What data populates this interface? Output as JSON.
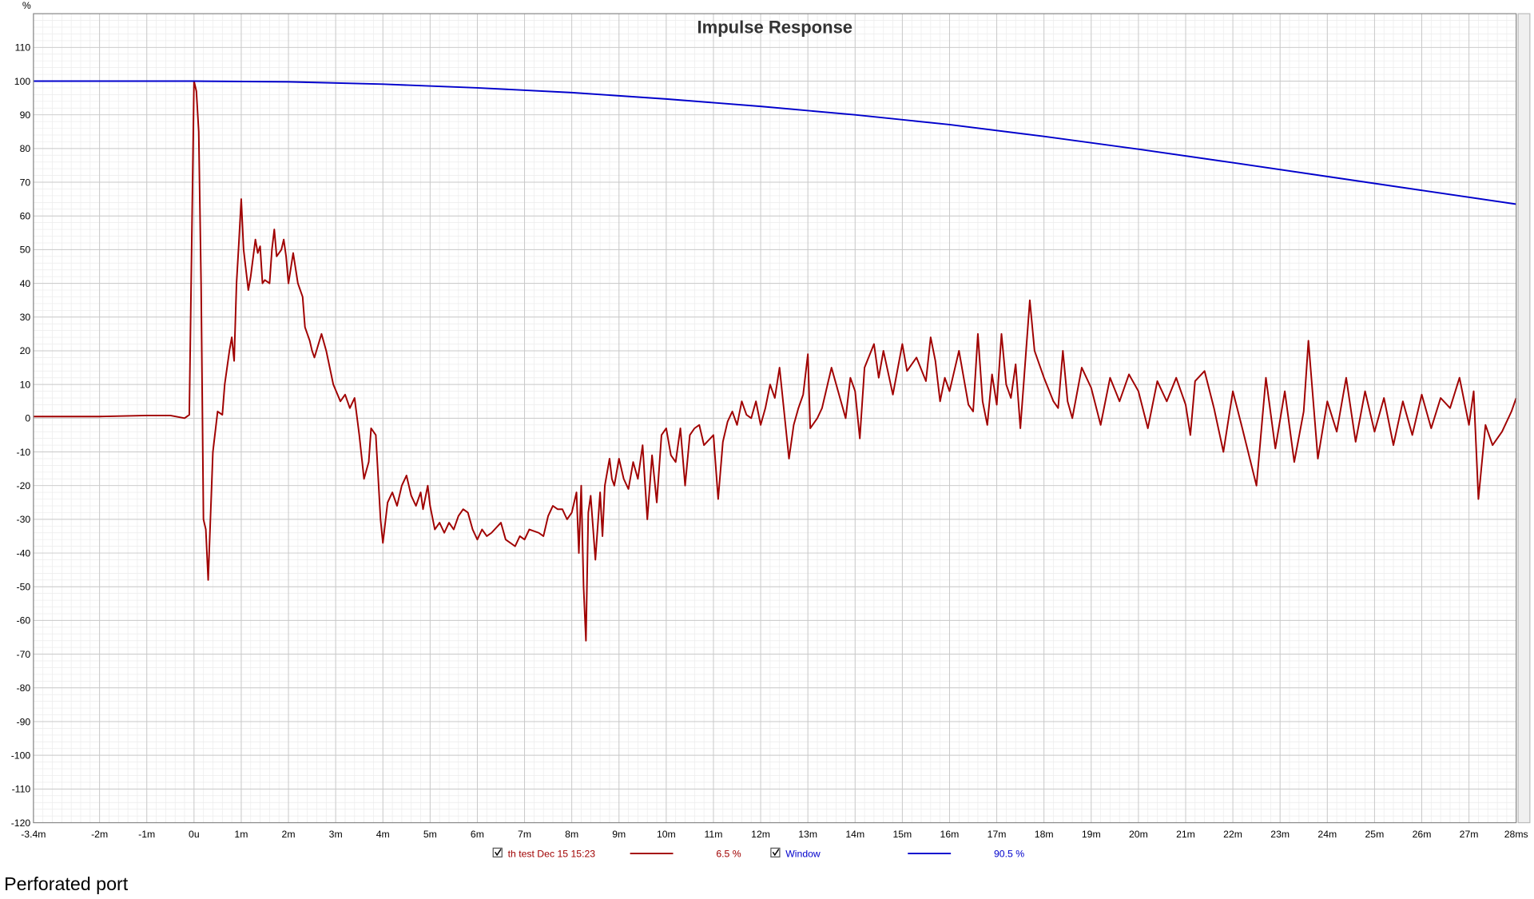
{
  "chart_data": {
    "type": "line",
    "title": "Impulse Response",
    "y_unit": "%",
    "caption": "Perforated port",
    "xlim": [
      -3.4,
      28
    ],
    "ylim": [
      -120,
      120
    ],
    "grid": true,
    "xticks": [
      {
        "value": -3.4,
        "label": "-3.4m"
      },
      {
        "value": -2,
        "label": "-2m"
      },
      {
        "value": -1,
        "label": "-1m"
      },
      {
        "value": 0,
        "label": "0u"
      },
      {
        "value": 1,
        "label": "1m"
      },
      {
        "value": 2,
        "label": "2m"
      },
      {
        "value": 3,
        "label": "3m"
      },
      {
        "value": 4,
        "label": "4m"
      },
      {
        "value": 5,
        "label": "5m"
      },
      {
        "value": 6,
        "label": "6m"
      },
      {
        "value": 7,
        "label": "7m"
      },
      {
        "value": 8,
        "label": "8m"
      },
      {
        "value": 9,
        "label": "9m"
      },
      {
        "value": 10,
        "label": "10m"
      },
      {
        "value": 11,
        "label": "11m"
      },
      {
        "value": 12,
        "label": "12m"
      },
      {
        "value": 13,
        "label": "13m"
      },
      {
        "value": 14,
        "label": "14m"
      },
      {
        "value": 15,
        "label": "15m"
      },
      {
        "value": 16,
        "label": "16m"
      },
      {
        "value": 17,
        "label": "17m"
      },
      {
        "value": 18,
        "label": "18m"
      },
      {
        "value": 19,
        "label": "19m"
      },
      {
        "value": 20,
        "label": "20m"
      },
      {
        "value": 21,
        "label": "21m"
      },
      {
        "value": 22,
        "label": "22m"
      },
      {
        "value": 23,
        "label": "23m"
      },
      {
        "value": 24,
        "label": "24m"
      },
      {
        "value": 25,
        "label": "25m"
      },
      {
        "value": 26,
        "label": "26m"
      },
      {
        "value": 27,
        "label": "27m"
      },
      {
        "value": 28,
        "label": "28ms"
      }
    ],
    "yticks": [
      110,
      100,
      90,
      80,
      70,
      60,
      50,
      40,
      30,
      20,
      10,
      0,
      -10,
      -20,
      -30,
      -40,
      -50,
      -60,
      -70,
      -80,
      -90,
      -100,
      -110,
      -120
    ],
    "series": [
      {
        "name": "th test Dec 15 15:23",
        "color": "#a00000",
        "value_label": "6.5 %",
        "x": [
          -3.4,
          -2,
          -1,
          -0.5,
          -0.2,
          -0.1,
          0,
          0.05,
          0.1,
          0.15,
          0.2,
          0.25,
          0.3,
          0.4,
          0.5,
          0.6,
          0.65,
          0.75,
          0.8,
          0.85,
          0.9,
          0.95,
          1.0,
          1.05,
          1.15,
          1.2,
          1.3,
          1.35,
          1.4,
          1.45,
          1.5,
          1.6,
          1.65,
          1.7,
          1.75,
          1.85,
          1.9,
          1.95,
          2.0,
          2.1,
          2.2,
          2.3,
          2.35,
          2.45,
          2.5,
          2.55,
          2.7,
          2.8,
          2.95,
          3.1,
          3.2,
          3.3,
          3.4,
          3.5,
          3.6,
          3.7,
          3.75,
          3.85,
          3.95,
          4.0,
          4.1,
          4.2,
          4.3,
          4.4,
          4.5,
          4.6,
          4.7,
          4.8,
          4.85,
          4.95,
          5.0,
          5.1,
          5.2,
          5.3,
          5.4,
          5.5,
          5.6,
          5.7,
          5.8,
          5.9,
          6.0,
          6.1,
          6.2,
          6.3,
          6.5,
          6.6,
          6.8,
          6.9,
          7.0,
          7.1,
          7.3,
          7.4,
          7.5,
          7.6,
          7.7,
          7.8,
          7.9,
          8.0,
          8.1,
          8.15,
          8.2,
          8.25,
          8.3,
          8.35,
          8.4,
          8.5,
          8.6,
          8.65,
          8.7,
          8.8,
          8.85,
          8.9,
          9.0,
          9.1,
          9.2,
          9.3,
          9.4,
          9.5,
          9.6,
          9.7,
          9.8,
          9.9,
          10.0,
          10.1,
          10.2,
          10.3,
          10.4,
          10.5,
          10.6,
          10.7,
          10.8,
          11.0,
          11.1,
          11.2,
          11.3,
          11.4,
          11.5,
          11.6,
          11.7,
          11.8,
          11.9,
          12.0,
          12.1,
          12.2,
          12.3,
          12.4,
          12.6,
          12.7,
          12.8,
          12.9,
          13.0,
          13.05,
          13.2,
          13.3,
          13.5,
          13.7,
          13.8,
          13.9,
          14.0,
          14.1,
          14.2,
          14.4,
          14.5,
          14.6,
          14.8,
          15.0,
          15.1,
          15.3,
          15.5,
          15.6,
          15.7,
          15.8,
          15.9,
          16.0,
          16.2,
          16.4,
          16.5,
          16.6,
          16.7,
          16.8,
          16.9,
          17.0,
          17.1,
          17.2,
          17.3,
          17.4,
          17.5,
          17.7,
          17.8,
          18.0,
          18.2,
          18.3,
          18.4,
          18.5,
          18.6,
          18.8,
          19.0,
          19.2,
          19.4,
          19.6,
          19.8,
          20.0,
          20.2,
          20.4,
          20.6,
          20.8,
          21.0,
          21.1,
          21.2,
          21.4,
          21.6,
          21.8,
          22.0,
          22.2,
          22.5,
          22.7,
          22.9,
          23.1,
          23.3,
          23.5,
          23.6,
          23.8,
          24.0,
          24.2,
          24.4,
          24.6,
          24.8,
          25.0,
          25.2,
          25.4,
          25.6,
          25.8,
          26.0,
          26.2,
          26.4,
          26.6,
          26.8,
          27.0,
          27.1,
          27.2,
          27.35,
          27.5,
          27.7,
          27.9,
          28.0
        ],
        "values": [
          0.5,
          0.5,
          0.8,
          0.8,
          0,
          1,
          100,
          97,
          85,
          40,
          -30,
          -33,
          -48,
          -10,
          2,
          1,
          10,
          20,
          24,
          17,
          40,
          52,
          65,
          50,
          38,
          42,
          53,
          49,
          51,
          40,
          41,
          40,
          50,
          56,
          48,
          50,
          53,
          48,
          40,
          49,
          40,
          36,
          27,
          23,
          20,
          18,
          25,
          20,
          10,
          5,
          7,
          3,
          6,
          -5,
          -18,
          -13,
          -3,
          -5,
          -30,
          -37,
          -25,
          -22,
          -26,
          -20,
          -17,
          -23,
          -26,
          -22,
          -27,
          -20,
          -26,
          -33,
          -31,
          -34,
          -31,
          -33,
          -29,
          -27,
          -28,
          -33,
          -36,
          -33,
          -35,
          -34,
          -31,
          -36,
          -38,
          -35,
          -36,
          -33,
          -34,
          -35,
          -29,
          -26,
          -27,
          -27,
          -30,
          -28,
          -22,
          -40,
          -20,
          -50,
          -66,
          -28,
          -23,
          -42,
          -22,
          -35,
          -20,
          -12,
          -18,
          -20,
          -12,
          -18,
          -21,
          -13,
          -18,
          -8,
          -30,
          -11,
          -25,
          -5,
          -3,
          -11,
          -13,
          -3,
          -20,
          -5,
          -3,
          -2,
          -8,
          -5,
          -24,
          -7,
          -1,
          2,
          -2,
          5,
          1,
          0,
          5,
          -2,
          3,
          10,
          6,
          15,
          -12,
          -2,
          3,
          7,
          19,
          -3,
          0,
          3,
          15,
          5,
          0,
          12,
          8,
          -6,
          15,
          22,
          12,
          20,
          7,
          22,
          14,
          18,
          11,
          24,
          17,
          5,
          12,
          8,
          20,
          4,
          2,
          25,
          5,
          -2,
          13,
          4,
          25,
          10,
          6,
          16,
          -3,
          35,
          20,
          12,
          5,
          3,
          20,
          5,
          0,
          15,
          9,
          -2,
          12,
          5,
          13,
          8,
          -3,
          11,
          5,
          12,
          4,
          -5,
          11,
          14,
          3,
          -10,
          8,
          -3,
          -20,
          12,
          -9,
          8,
          -13,
          2,
          23,
          -12,
          5,
          -4,
          12,
          -7,
          8,
          -4,
          6,
          -8,
          5,
          -5,
          7,
          -3,
          6,
          3,
          12,
          -2,
          8,
          -24,
          -2,
          -8,
          -4,
          2,
          6
        ]
      },
      {
        "name": "Window",
        "color": "#0000cc",
        "value_label": "90.5 %",
        "x": [
          -3.4,
          0,
          2,
          4,
          6,
          8,
          10,
          12,
          14,
          16,
          18,
          20,
          22,
          24,
          26,
          28
        ],
        "values": [
          100,
          100,
          99.8,
          99.1,
          98,
          96.6,
          94.7,
          92.5,
          90,
          87.1,
          83.6,
          79.8,
          75.8,
          71.7,
          67.6,
          63.5
        ]
      }
    ]
  }
}
